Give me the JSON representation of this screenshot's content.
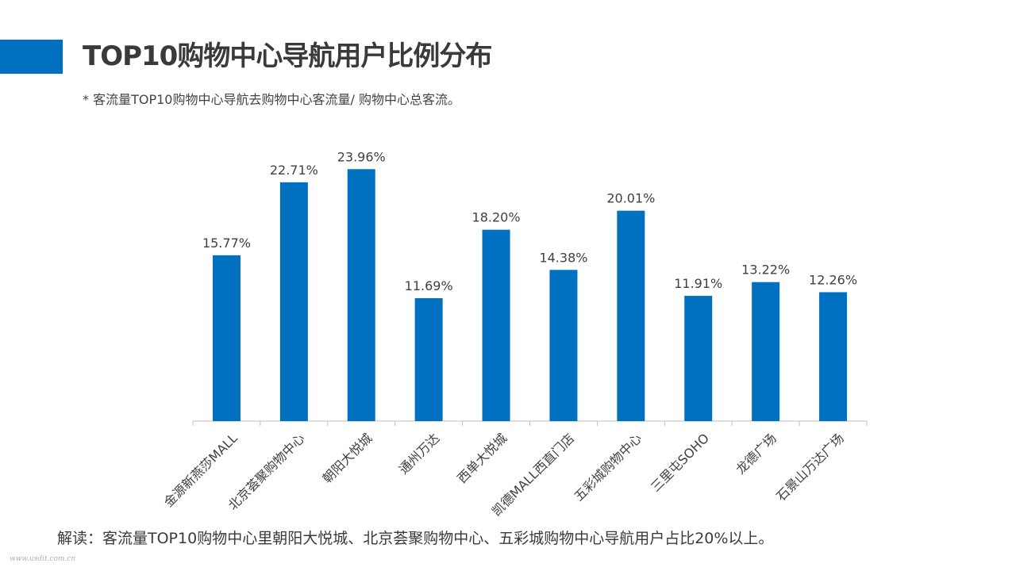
{
  "header": {
    "title": "TOP10购物中心导航用户比例分布",
    "subtitle": "* 客流量TOP10购物中心导航去购物中心客流量/ 购物中心总客流。"
  },
  "colors": {
    "accent": "#0070C0",
    "bar": "#0070C0",
    "axis": "#bfbfbf",
    "label": "#404040"
  },
  "chart_data": {
    "type": "bar",
    "title": "",
    "xlabel": "",
    "ylabel": "",
    "ylim": [
      0,
      25
    ],
    "grid": false,
    "legend": "none",
    "categories": [
      "金源新燕莎MALL",
      "北京荟聚购物中心",
      "朝阳大悦城",
      "通州万达",
      "西单大悦城",
      "凯德MALL西直门店",
      "五彩城购物中心",
      "三里屯SOHO",
      "龙德广场",
      "石景山万达广场"
    ],
    "values": [
      15.77,
      22.71,
      23.96,
      11.69,
      18.2,
      14.38,
      20.01,
      11.91,
      13.22,
      12.26
    ],
    "data_labels": [
      "15.77%",
      "22.71%",
      "23.96%",
      "11.69%",
      "18.20%",
      "14.38%",
      "20.01%",
      "11.91%",
      "13.22%",
      "12.26%"
    ]
  },
  "footer": {
    "note": "解读：客流量TOP10购物中心里朝阳大悦城、北京荟聚购物中心、五彩城购物中心导航用户占比20%以上。",
    "watermark": "www.usdit.com.cn"
  }
}
